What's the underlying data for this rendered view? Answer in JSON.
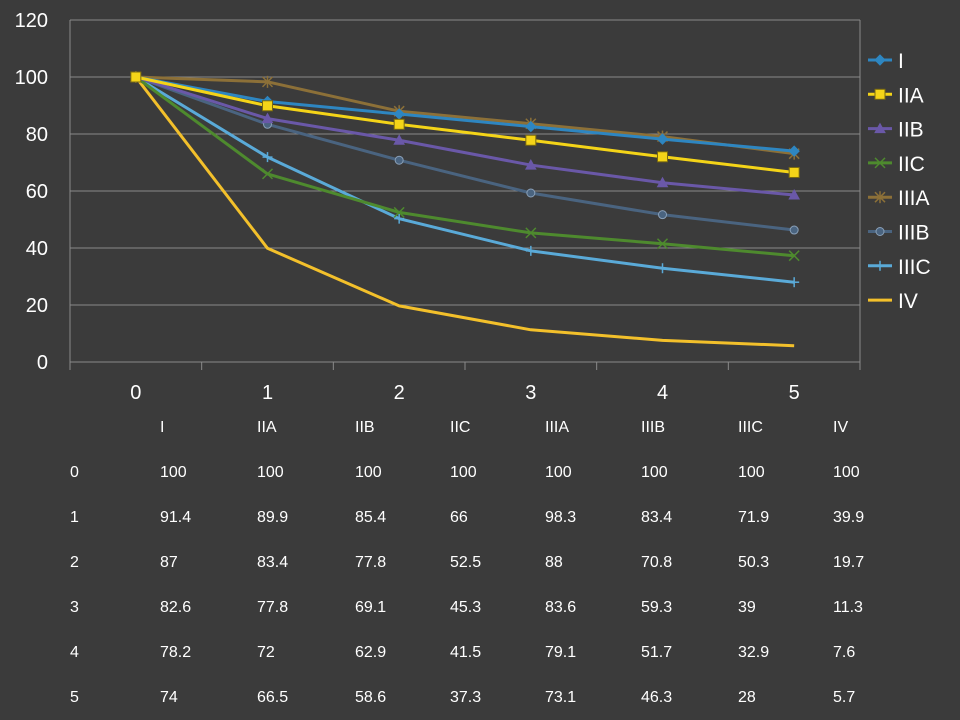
{
  "chart_data": {
    "type": "line",
    "x": [
      0,
      1,
      2,
      3,
      4,
      5
    ],
    "ylim": [
      0,
      120
    ],
    "yticks": [
      "0",
      "20",
      "40",
      "60",
      "80",
      "100",
      "120"
    ],
    "xticks": [
      "0",
      "1",
      "2",
      "3",
      "4",
      "5"
    ],
    "grid": true,
    "legend": "right",
    "series": [
      {
        "name": "I",
        "color": "#2e86c1",
        "marker": "diamond",
        "values": [
          100,
          91.4,
          87,
          82.6,
          78.2,
          74
        ]
      },
      {
        "name": "IIA",
        "color": "#f4d418",
        "marker": "square",
        "values": [
          100,
          89.9,
          83.4,
          77.8,
          72,
          66.5
        ]
      },
      {
        "name": "IIB",
        "color": "#6a58a8",
        "marker": "triangle",
        "values": [
          100,
          85.4,
          77.8,
          69.1,
          62.9,
          58.6
        ]
      },
      {
        "name": "IIC",
        "color": "#4e8a2e",
        "marker": "x",
        "values": [
          100,
          66,
          52.5,
          45.3,
          41.5,
          37.3
        ]
      },
      {
        "name": "IIIA",
        "color": "#8c7038",
        "marker": "star",
        "values": [
          100,
          98.3,
          88,
          83.6,
          79.1,
          73.1
        ]
      },
      {
        "name": "IIIB",
        "color": "#4a6480",
        "marker": "circle",
        "values": [
          100,
          83.4,
          70.8,
          59.3,
          51.7,
          46.3
        ]
      },
      {
        "name": "IIIC",
        "color": "#5aaad8",
        "marker": "plus",
        "values": [
          100,
          71.9,
          50.3,
          39,
          32.9,
          28
        ]
      },
      {
        "name": "IV",
        "color": "#f3c02b",
        "marker": "none",
        "values": [
          100,
          39.9,
          19.7,
          11.3,
          7.6,
          5.7
        ]
      }
    ]
  },
  "table": {
    "header": [
      "I",
      "IIA",
      "IIB",
      "IIC",
      "IIIA",
      "IIIB",
      "IIIC",
      "IV"
    ],
    "rows": [
      [
        "0",
        "100",
        "100",
        "100",
        "100",
        "100",
        "100",
        "100",
        "100"
      ],
      [
        "1",
        "91.4",
        "89.9",
        "85.4",
        "66",
        "98.3",
        "83.4",
        "71.9",
        "39.9"
      ],
      [
        "2",
        "87",
        "83.4",
        "77.8",
        "52.5",
        "88",
        "70.8",
        "50.3",
        "19.7"
      ],
      [
        "3",
        "82.6",
        "77.8",
        "69.1",
        "45.3",
        "83.6",
        "59.3",
        "39",
        "11.3"
      ],
      [
        "4",
        "78.2",
        "72",
        "62.9",
        "41.5",
        "79.1",
        "51.7",
        "32.9",
        "7.6"
      ],
      [
        "5",
        "74",
        "66.5",
        "58.6",
        "37.3",
        "73.1",
        "46.3",
        "28",
        "5.7"
      ]
    ]
  }
}
